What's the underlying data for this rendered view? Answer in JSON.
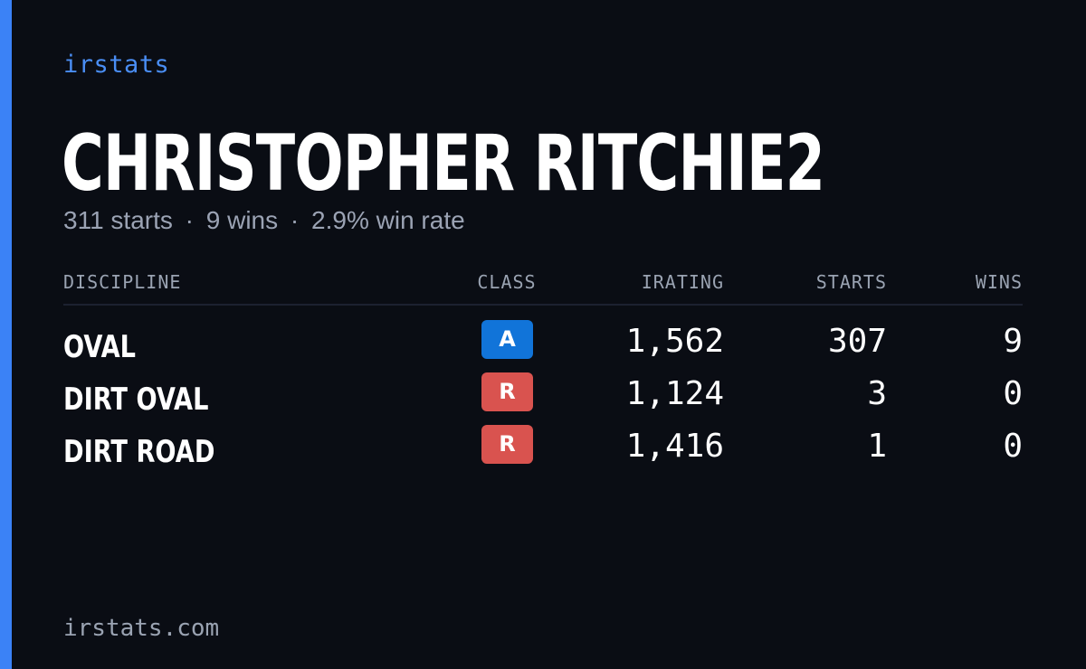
{
  "brand": "irstats",
  "driver": {
    "name": "CHRISTOPHER RITCHIE2",
    "starts_text": "311 starts",
    "wins_text": "9 wins",
    "win_rate_text": "2.9% win rate",
    "separator": "·"
  },
  "table": {
    "headers": {
      "discipline": "DISCIPLINE",
      "class": "CLASS",
      "irating": "IRATING",
      "starts": "STARTS",
      "wins": "WINS"
    },
    "rows": [
      {
        "discipline": "OVAL",
        "class": "A",
        "class_color": "#1174d9",
        "irating": "1,562",
        "starts": "307",
        "wins": "9"
      },
      {
        "discipline": "DIRT OVAL",
        "class": "R",
        "class_color": "#d9534f",
        "irating": "1,124",
        "starts": "3",
        "wins": "0"
      },
      {
        "discipline": "DIRT ROAD",
        "class": "R",
        "class_color": "#d9534f",
        "irating": "1,416",
        "starts": "1",
        "wins": "0"
      }
    ]
  },
  "footer": "irstats.com",
  "colors": {
    "accent": "#3b82f6",
    "background": "#0a0d14"
  }
}
